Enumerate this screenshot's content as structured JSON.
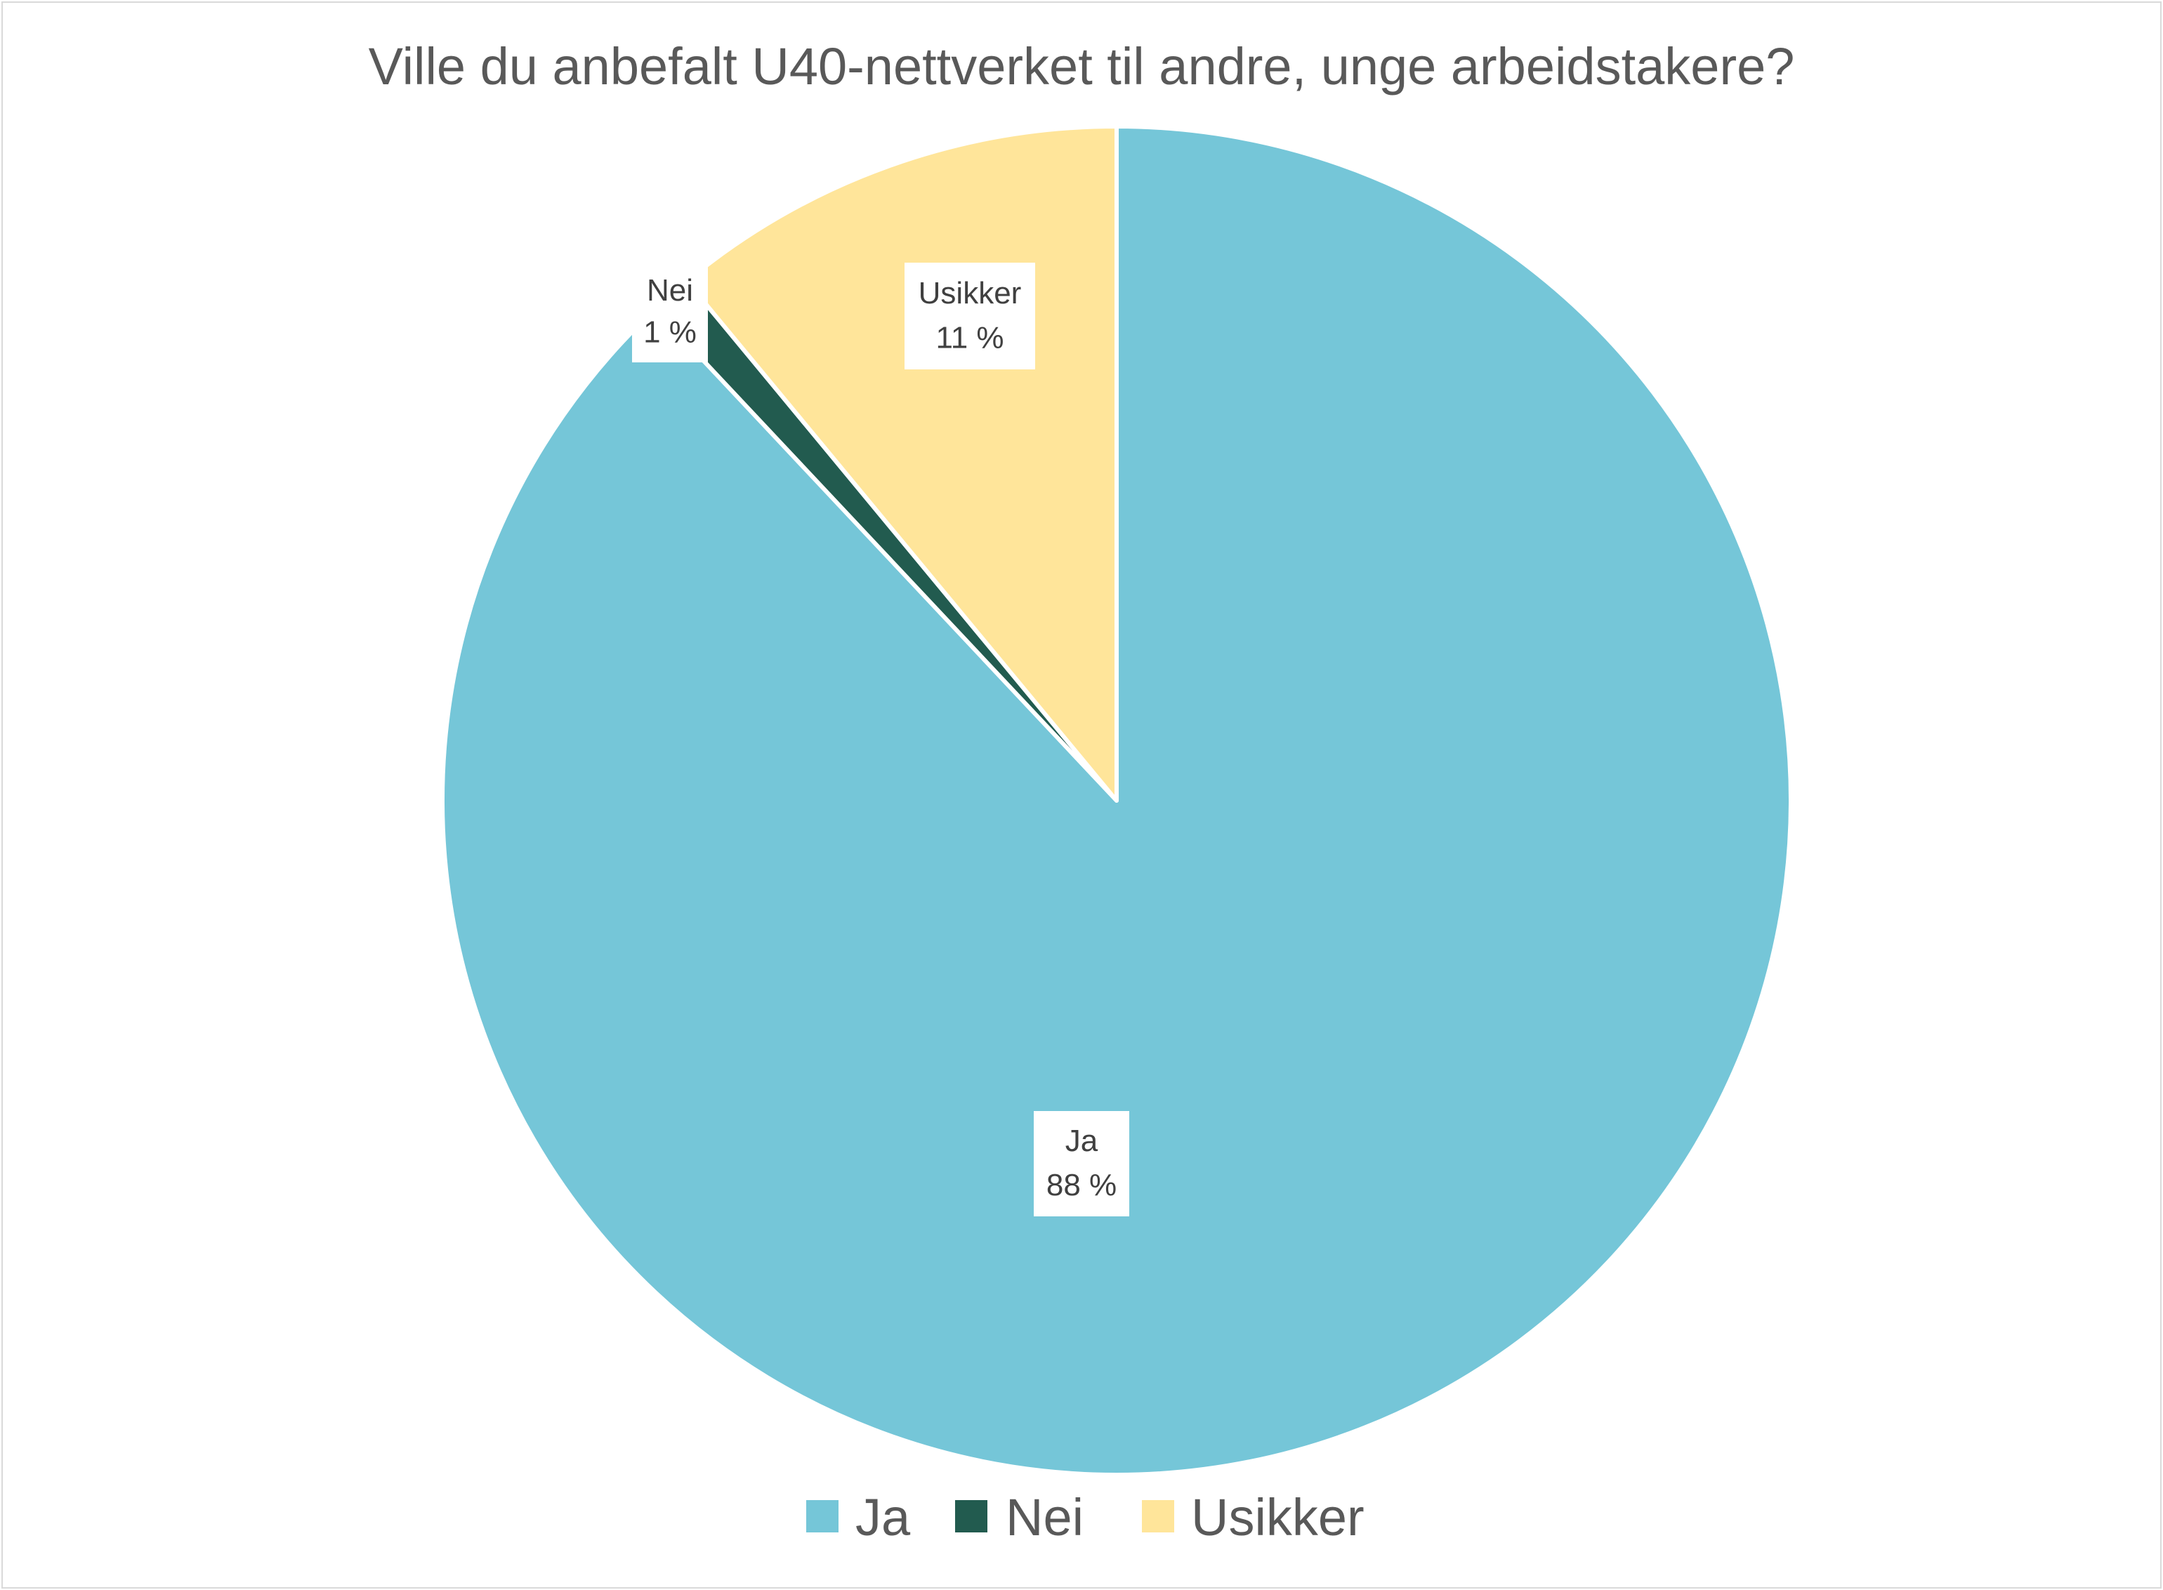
{
  "chart_data": {
    "type": "pie",
    "title": "Ville du anbefalt U40-nettverket til andre, unge arbeidstakere?",
    "categories": [
      "Ja",
      "Nei",
      "Usikker"
    ],
    "values": [
      88,
      1,
      11
    ],
    "value_labels": [
      "88 %",
      "1 %",
      "11 %"
    ],
    "colors": [
      "#75C6D8",
      "#225B4F",
      "#FFE59A"
    ],
    "start_angle_deg": 0,
    "direction": "clockwise",
    "legend": {
      "position": "bottom",
      "entries": [
        "Ja",
        "Nei",
        "Usikker"
      ]
    }
  }
}
